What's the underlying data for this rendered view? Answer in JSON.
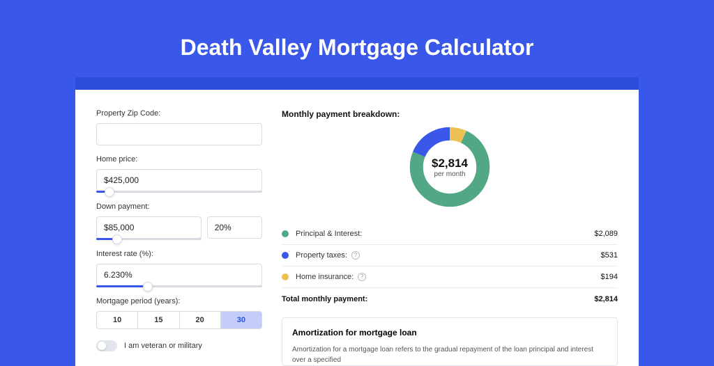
{
  "title": "Death Valley Mortgage Calculator",
  "form": {
    "zip": {
      "label": "Property Zip Code:",
      "value": ""
    },
    "home_price": {
      "label": "Home price:",
      "value": "$425,000",
      "slider_pct": 8
    },
    "down_payment": {
      "label": "Down payment:",
      "value": "$85,000",
      "pct_value": "20%",
      "slider_pct": 20
    },
    "interest": {
      "label": "Interest rate (%):",
      "value": "6.230%",
      "slider_pct": 31
    },
    "period": {
      "label": "Mortgage period (years):",
      "options": [
        "10",
        "15",
        "20",
        "30"
      ],
      "active_index": 3
    },
    "veteran": {
      "label": "I am veteran or military",
      "on": false
    }
  },
  "breakdown": {
    "title": "Monthly payment breakdown:",
    "center_value": "$2,814",
    "center_sub": "per month",
    "segments": [
      {
        "key": "principal",
        "label": "Principal & Interest:",
        "amount": "$2,089",
        "color": "#52a784",
        "pct": 74.2,
        "help": false
      },
      {
        "key": "taxes",
        "label": "Property taxes:",
        "amount": "$531",
        "color": "#3957e8",
        "pct": 18.9,
        "help": true
      },
      {
        "key": "insurance",
        "label": "Home insurance:",
        "amount": "$194",
        "color": "#ebc253",
        "pct": 6.9,
        "help": true
      }
    ],
    "total_label": "Total monthly payment:",
    "total_amount": "$2,814"
  },
  "amort": {
    "title": "Amortization for mortgage loan",
    "text": "Amortization for a mortgage loan refers to the gradual repayment of the loan principal and interest over a specified"
  },
  "style": {
    "bg": "#3957e8",
    "strip": "#2a4edb",
    "donut_thickness": 19
  }
}
